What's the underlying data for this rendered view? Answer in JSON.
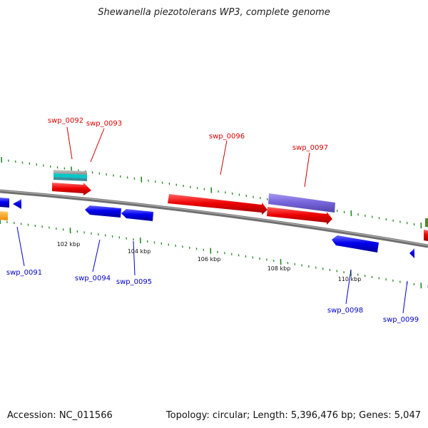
{
  "title": "Shewanella piezotolerans WP3, complete genome",
  "accession": "Accession: NC_011566",
  "summary": "Topology: circular; Length: 5,396,476 bp; Genes: 5,047",
  "scale_labels": [
    "102 kbp",
    "104 kbp",
    "106 kbp",
    "108 kbp",
    "110 kbp"
  ],
  "gene_labels": {
    "swp_0091": "swp_0091",
    "swp_0092": "swp_0092",
    "swp_0093": "swp_0093",
    "swp_0094": "swp_0094",
    "swp_0095": "swp_0095",
    "swp_0096": "swp_0096",
    "swp_0097": "swp_0097",
    "swp_0098": "swp_0098",
    "swp_0099": "swp_0099"
  },
  "colors": {
    "forward_gene": "#ff0000",
    "reverse_gene": "#0000ff",
    "backbone": "#777777",
    "tick": "#228822",
    "misc_feature": "#7766dd",
    "rna_gray": "#999999",
    "rna_cyan": "#00cccc",
    "orange_feature": "#ff9900",
    "green_feature": "#558822"
  }
}
